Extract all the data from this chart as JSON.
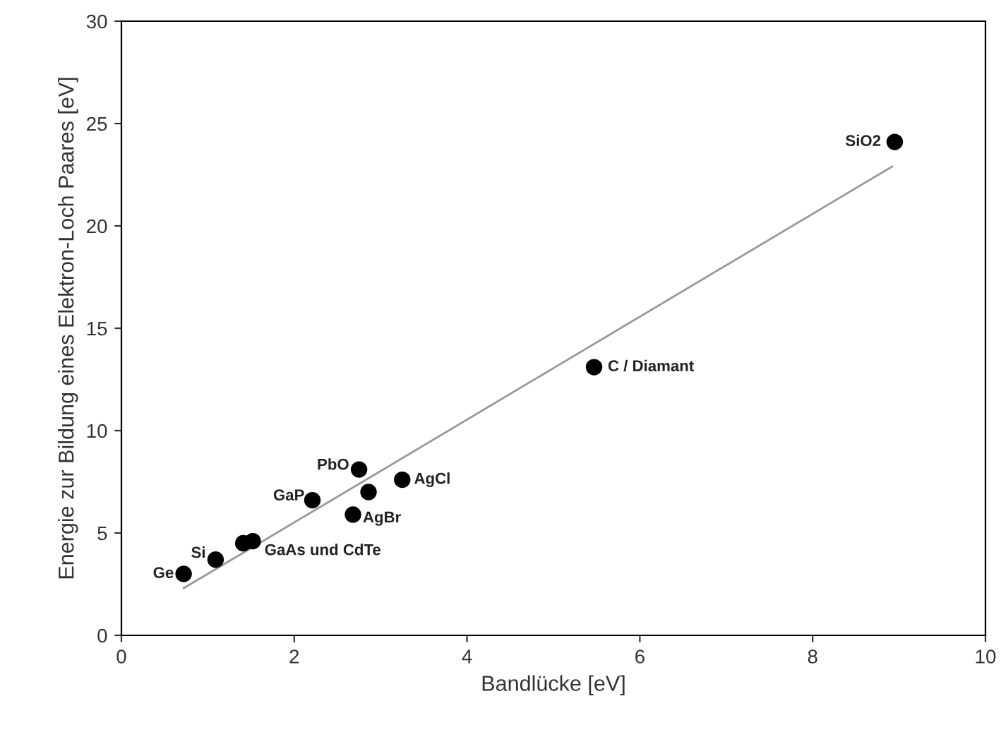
{
  "chart_data": {
    "type": "scatter",
    "xlabel": "Bandlücke [eV]",
    "ylabel": "Energie zur Bildung eines Elektron-Loch Paares [eV]",
    "xlim": [
      0,
      10
    ],
    "ylim": [
      0,
      30
    ],
    "xticks": [
      0,
      2,
      4,
      6,
      8,
      10
    ],
    "yticks": [
      0,
      5,
      10,
      15,
      20,
      25,
      30
    ],
    "grid": false,
    "legend": false,
    "series": [
      {
        "color": "#000000",
        "marker": "circle",
        "x": [
          0.72,
          1.09,
          1.41,
          1.52,
          2.21,
          2.68,
          2.75,
          2.86,
          3.25,
          5.47,
          8.95
        ],
        "values": [
          3.0,
          3.7,
          4.5,
          4.6,
          6.6,
          5.9,
          8.1,
          7.0,
          7.6,
          13.1,
          24.1
        ]
      },
      {
        "type": "line",
        "color": "#999999",
        "marker": "none",
        "x": [
          0.72,
          8.92
        ],
        "values": [
          2.3,
          22.9
        ]
      }
    ],
    "annotations": [
      {
        "text": "Ge",
        "x": 0.72,
        "y": 3.0
      },
      {
        "text": "Si",
        "x": 1.09,
        "y": 3.7
      },
      {
        "text": "GaAs und CdTe",
        "x": 1.52,
        "y": 4.6
      },
      {
        "text": "GaP",
        "x": 2.21,
        "y": 6.6
      },
      {
        "text": "AgBr",
        "x": 2.68,
        "y": 5.9
      },
      {
        "text": "PbO",
        "x": 2.75,
        "y": 8.1
      },
      {
        "text": "AgCl",
        "x": 3.25,
        "y": 7.6
      },
      {
        "text": "C / Diamant",
        "x": 5.47,
        "y": 13.1
      },
      {
        "text": "SiO2",
        "x": 8.95,
        "y": 24.1
      }
    ]
  }
}
